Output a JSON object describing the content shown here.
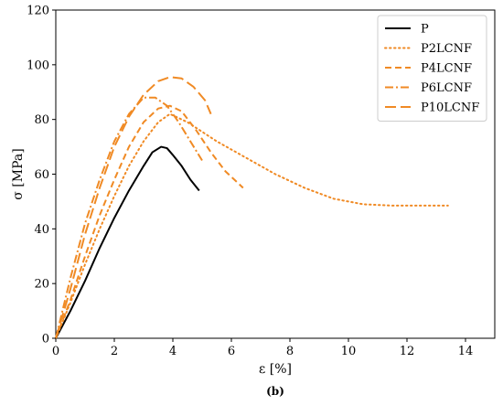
{
  "chart_data": {
    "type": "line",
    "xlabel": "ε [%]",
    "ylabel": "σ [MPa]",
    "xlim": [
      0,
      15
    ],
    "ylim": [
      0,
      120
    ],
    "xticks": [
      0,
      2,
      4,
      6,
      8,
      10,
      12,
      14
    ],
    "yticks": [
      0,
      20,
      40,
      60,
      80,
      100,
      120
    ],
    "caption": "(b)",
    "grid": false,
    "legend_position": "top-right",
    "series": [
      {
        "name": "P",
        "color": "#000000",
        "dash": "solid",
        "x": [
          0,
          0.5,
          1.0,
          1.5,
          2.0,
          2.5,
          3.0,
          3.3,
          3.6,
          3.8,
          4.0,
          4.3,
          4.6,
          4.9
        ],
        "y": [
          0,
          10,
          21,
          33,
          44,
          54,
          63,
          68,
          70,
          69.5,
          67,
          63,
          58,
          54
        ]
      },
      {
        "name": "P2LCNF",
        "color": "#f08a24",
        "dash": "dotted",
        "x": [
          0,
          0.5,
          1.0,
          1.5,
          2.0,
          2.5,
          3.0,
          3.5,
          3.9,
          4.5,
          5.5,
          6.5,
          7.5,
          8.5,
          9.5,
          10.5,
          11.5,
          12.5,
          13.4
        ],
        "y": [
          0,
          13,
          27,
          40,
          52,
          63,
          72,
          79,
          82,
          79,
          72,
          66,
          60,
          55,
          51,
          49,
          48.5,
          48.5,
          48.5
        ]
      },
      {
        "name": "P4LCNF",
        "color": "#f08a24",
        "dash": "dashed",
        "x": [
          0,
          0.5,
          1.0,
          1.5,
          2.0,
          2.5,
          3.0,
          3.5,
          3.9,
          4.3,
          4.8,
          5.3,
          5.8,
          6.4
        ],
        "y": [
          0,
          14,
          30,
          45,
          58,
          70,
          79,
          84,
          85,
          83,
          76,
          68,
          61,
          55
        ]
      },
      {
        "name": "P6LCNF",
        "color": "#f08a24",
        "dash": "dashdot",
        "x": [
          0,
          0.5,
          1.0,
          1.5,
          2.0,
          2.5,
          3.0,
          3.4,
          3.8,
          4.2,
          4.6,
          5.0
        ],
        "y": [
          0,
          22,
          42,
          58,
          72,
          82,
          88,
          88,
          85,
          79,
          72,
          65
        ]
      },
      {
        "name": "P10LCNF",
        "color": "#f08a24",
        "dash": "longdash",
        "x": [
          0,
          0.5,
          1.0,
          1.5,
          2.0,
          2.5,
          3.0,
          3.5,
          3.9,
          4.3,
          4.7,
          5.1,
          5.3
        ],
        "y": [
          0,
          18,
          38,
          55,
          70,
          81,
          89,
          94,
          95.5,
          95,
          92,
          87,
          82
        ]
      }
    ]
  }
}
